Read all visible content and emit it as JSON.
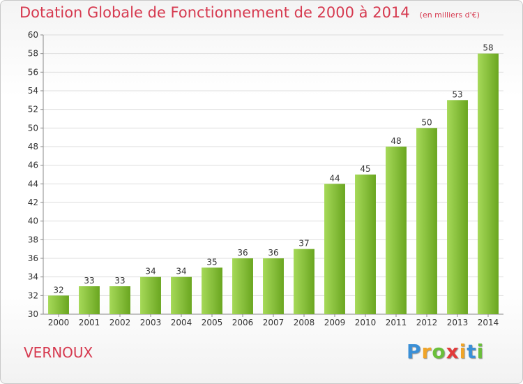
{
  "chart_data": {
    "type": "bar",
    "title": "Dotation Globale de Fonctionnement de 2000 à 2014",
    "subtitle": "(en milliers d'€)",
    "categories": [
      "2000",
      "2001",
      "2002",
      "2003",
      "2004",
      "2005",
      "2006",
      "2007",
      "2008",
      "2009",
      "2010",
      "2011",
      "2012",
      "2013",
      "2014"
    ],
    "values": [
      32,
      33,
      33,
      34,
      34,
      35,
      36,
      36,
      37,
      44,
      45,
      48,
      50,
      53,
      58
    ],
    "ylim": [
      30,
      60
    ],
    "ytick_step": 2,
    "xlabel": "",
    "ylabel": "",
    "grid": true
  },
  "location": "VERNOUX",
  "brand": {
    "letters": [
      "P",
      "r",
      "o",
      "x",
      "i",
      "t",
      "i"
    ],
    "colors": [
      "#3a8fd6",
      "#f0a428",
      "#6abf3a",
      "#e23b3b",
      "#f0a428",
      "#3a8fd6",
      "#6abf3a"
    ]
  },
  "colors": {
    "title": "#d6394f",
    "bar_light": "#a6d959",
    "bar_dark": "#6aa620",
    "grid": "#dddddd",
    "axis": "#888888"
  }
}
